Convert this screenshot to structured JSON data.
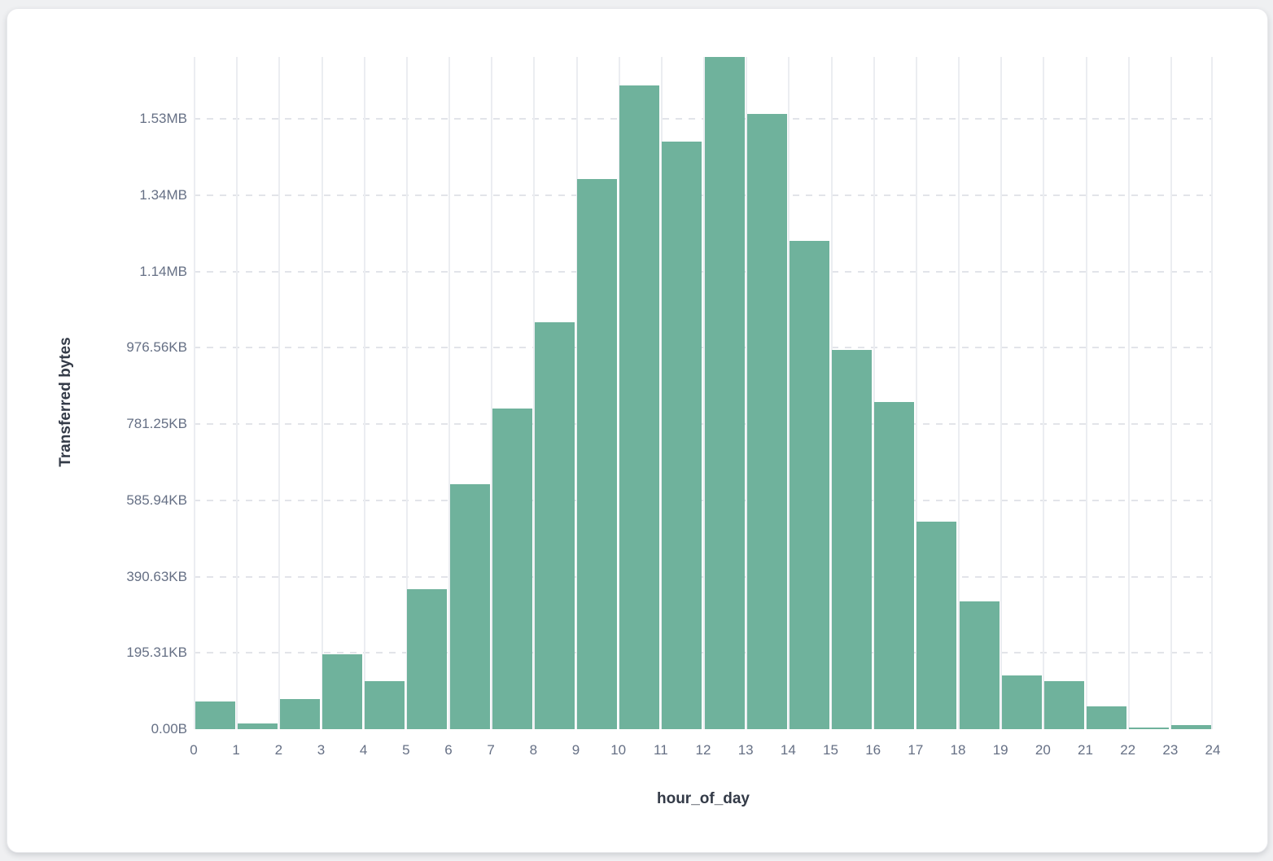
{
  "chart_data": {
    "type": "bar",
    "title": "",
    "xlabel": "hour_of_day",
    "ylabel": "Transferred bytes",
    "unit": "bytes",
    "categories": [
      0,
      1,
      2,
      3,
      4,
      5,
      6,
      7,
      8,
      9,
      10,
      11,
      12,
      13,
      14,
      15,
      16,
      17,
      18,
      19,
      20,
      21,
      22,
      23
    ],
    "values": [
      73000,
      15000,
      78000,
      196000,
      125000,
      368000,
      642000,
      840000,
      1068000,
      1442000,
      1688000,
      1542000,
      1763000,
      1613000,
      1281000,
      995000,
      857000,
      545000,
      335000,
      141000,
      126000,
      59000,
      4300,
      11000
    ],
    "x_tick_labels": [
      "0",
      "1",
      "2",
      "3",
      "4",
      "5",
      "6",
      "7",
      "8",
      "9",
      "10",
      "11",
      "12",
      "13",
      "14",
      "15",
      "16",
      "17",
      "18",
      "19",
      "20",
      "21",
      "22",
      "23",
      "24"
    ],
    "y_ticks": [
      {
        "label": "0.00B",
        "value": 0
      },
      {
        "label": "195.31KB",
        "value": 200000
      },
      {
        "label": "390.63KB",
        "value": 400000
      },
      {
        "label": "585.94KB",
        "value": 600000
      },
      {
        "label": "781.25KB",
        "value": 800000
      },
      {
        "label": "976.56KB",
        "value": 1000000
      },
      {
        "label": "1.14MB",
        "value": 1200000
      },
      {
        "label": "1.34MB",
        "value": 1400000
      },
      {
        "label": "1.53MB",
        "value": 1600000
      }
    ],
    "xlim": [
      0,
      24
    ],
    "ylim": [
      0,
      1763000
    ],
    "bar_color": "#6fb29c",
    "grid": {
      "vertical_solid": true,
      "horizontal_dashed": true
    },
    "legend_position": "none"
  }
}
